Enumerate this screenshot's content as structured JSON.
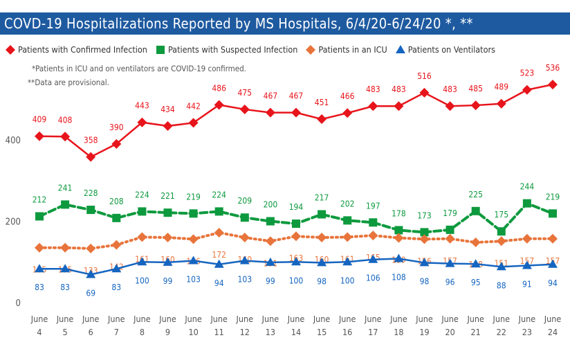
{
  "title": "COVD-19 Hospitalizations Reported by MS Hospitals, 6/4/20-6/24/20 *, **",
  "notes": [
    "*Patients in ICU and on ventilators are COVID-19 confirmed.",
    "**Data are provisional."
  ],
  "chart_data": {
    "type": "line",
    "title": "COVD-19 Hospitalizations Reported by MS Hospitals, 6/4/20-6/24/20 *, **",
    "categories": [
      "June 4",
      "June 5",
      "June 6",
      "June 7",
      "June 8",
      "June 9",
      "June 10",
      "June 11",
      "June 12",
      "June 13",
      "June 14",
      "June 15",
      "June 16",
      "June 17",
      "June 18",
      "June 19",
      "June 20",
      "June 21",
      "June 22",
      "June 23",
      "June 24"
    ],
    "ylim": [
      0,
      560
    ],
    "yticks": [
      0,
      200,
      400
    ],
    "grid": false,
    "legend": "top-left",
    "series": [
      {
        "name": "Patients with Confirmed Infection",
        "color": "#e8141b",
        "marker": "diamond",
        "style": "solid",
        "label": "above",
        "values": [
          409,
          408,
          358,
          390,
          443,
          434,
          442,
          486,
          475,
          467,
          467,
          451,
          466,
          483,
          483,
          516,
          483,
          485,
          489,
          523,
          536
        ]
      },
      {
        "name": "Patients with Suspected Infection",
        "color": "#0d9a3e",
        "marker": "square",
        "style": "dashed",
        "label": "above",
        "values": [
          212,
          241,
          228,
          208,
          224,
          221,
          219,
          224,
          209,
          200,
          194,
          217,
          202,
          197,
          178,
          173,
          179,
          225,
          175,
          244,
          219
        ]
      },
      {
        "name": "Patients in an ICU",
        "color": "#e8743b",
        "marker": "diamond",
        "style": "dotted",
        "label": "below",
        "values": [
          135,
          135,
          133,
          142,
          161,
          160,
          156,
          172,
          160,
          151,
          163,
          160,
          161,
          165,
          159,
          156,
          157,
          148,
          151,
          157,
          157
        ]
      },
      {
        "name": "Patients on Ventilators",
        "color": "#1565c0",
        "marker": "triangle",
        "style": "solid",
        "label": "below",
        "values": [
          83,
          83,
          69,
          83,
          100,
          99,
          103,
          94,
          103,
          99,
          100,
          98,
          100,
          106,
          108,
          98,
          96,
          95,
          88,
          91,
          94
        ]
      }
    ]
  }
}
